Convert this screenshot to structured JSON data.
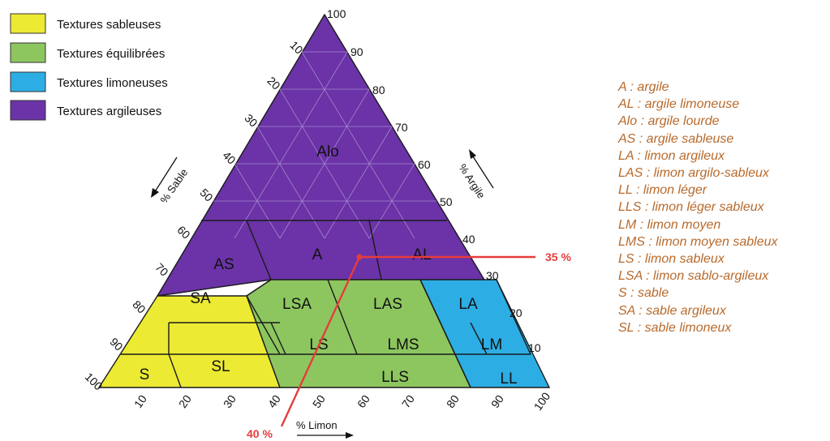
{
  "legend": [
    {
      "label": "Textures sableuses",
      "color": "#ecea33"
    },
    {
      "label": "Textures équilibrées",
      "color": "#8dc65f"
    },
    {
      "label": "Textures limoneuses",
      "color": "#2caee4"
    },
    {
      "label": "Textures argileuses",
      "color": "#6b33a7"
    }
  ],
  "colors": {
    "sableuses": "#ecea33",
    "equilibrees": "#8dc65f",
    "limoneuses": "#2caee4",
    "argileuses": "#6b33a7",
    "marker": "#e63c3c",
    "gridlines": "#b9a4d8"
  },
  "zones": {
    "alo": "Alo",
    "a": "A",
    "al": "AL",
    "as": "AS",
    "lsa": "LSA",
    "las": "LAS",
    "la": "LA",
    "sa": "SA",
    "ls": "LS",
    "lms": "LMS",
    "lm": "LM",
    "s": "S",
    "sl": "SL",
    "lls": "LLS",
    "ll": "LL"
  },
  "axes": {
    "argile_label": "% Argile",
    "sable_label": "% Sable",
    "limon_label": "% Limon",
    "argile_ticks": [
      "10",
      "20",
      "30",
      "40",
      "50",
      "60",
      "70",
      "80",
      "90",
      "100"
    ],
    "sable_ticks": [
      "10",
      "20",
      "30",
      "40",
      "50",
      "60",
      "70",
      "80",
      "90",
      "100"
    ],
    "limon_ticks": [
      "10",
      "20",
      "30",
      "40",
      "50",
      "60",
      "70",
      "80",
      "90",
      "100"
    ]
  },
  "example": {
    "argile_value": "35 %",
    "limon_value": "40 %"
  },
  "abbreviations": [
    "A : argile",
    "AL : argile limoneuse",
    "Alo : argile lourde",
    "AS : argile sableuse",
    "LA : limon argileux",
    "LAS : limon argilo-sableux",
    "LL : limon léger",
    "LLS : limon léger sableux",
    "LM : limon moyen",
    "LMS : limon moyen sableux",
    "LS : limon sableux",
    "LSA : limon sablo-argileux",
    "S : sable",
    "SA : sable argileux",
    "SL : sable limoneux"
  ]
}
